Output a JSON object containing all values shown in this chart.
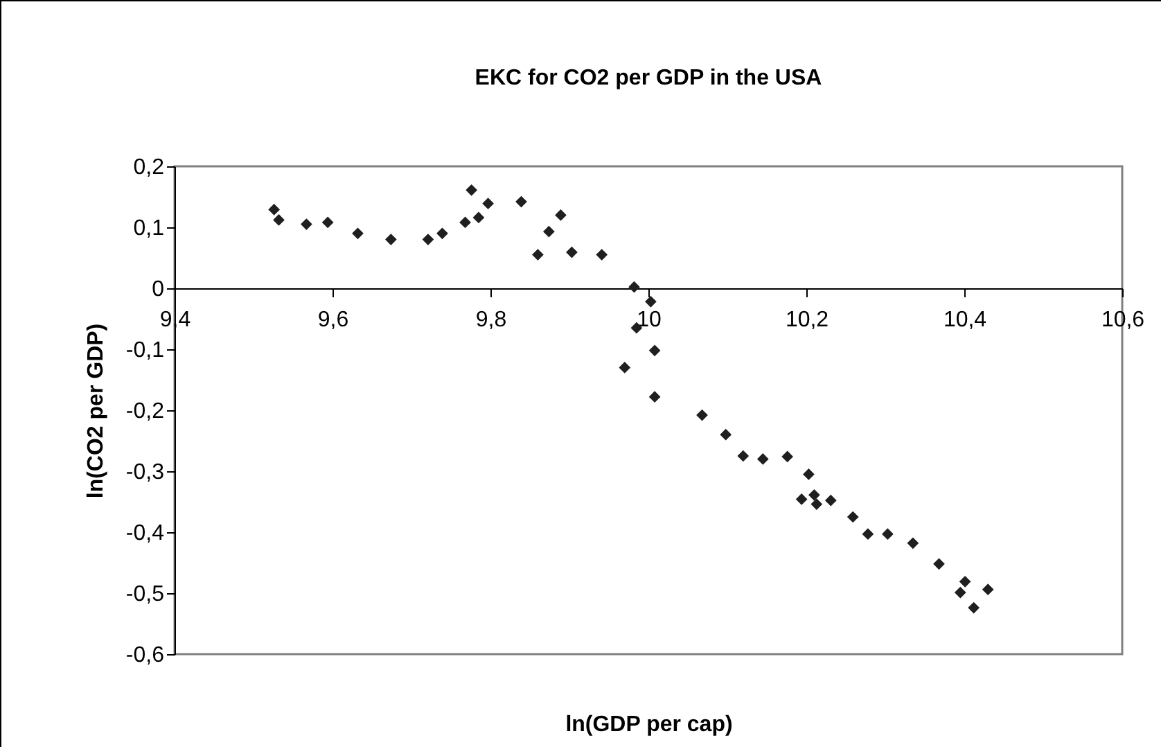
{
  "chart_data": {
    "type": "scatter",
    "title": "EKC for CO2 per GDP in the USA",
    "xlabel": "ln(GDP per cap)",
    "ylabel": "ln(CO2 per GDP)",
    "x": [
      9.526,
      9.532,
      9.567,
      9.594,
      9.632,
      9.674,
      9.721,
      9.739,
      9.768,
      9.776,
      9.785,
      9.797,
      9.839,
      9.86,
      9.874,
      9.889,
      9.903,
      9.941,
      9.982,
      10.003,
      9.985,
      9.97,
      10.008,
      10.008,
      10.068,
      10.098,
      10.12,
      10.145,
      10.176,
      10.203,
      10.194,
      10.21,
      10.213,
      10.231,
      10.259,
      10.278,
      10.303,
      10.335,
      10.368,
      10.401,
      10.395,
      10.43,
      10.412
    ],
    "series": [
      {
        "color": "#1f1f1f",
        "values": [
          0.129,
          0.112,
          0.105,
          0.108,
          0.09,
          0.08,
          0.08,
          0.09,
          0.108,
          0.161,
          0.116,
          0.139,
          0.142,
          0.055,
          0.093,
          0.12,
          0.059,
          0.055,
          0.002,
          -0.022,
          -0.065,
          -0.13,
          -0.102,
          -0.178,
          -0.208,
          -0.24,
          -0.275,
          -0.28,
          -0.276,
          -0.305,
          -0.346,
          -0.339,
          -0.354,
          -0.348,
          -0.375,
          -0.403,
          -0.403,
          -0.418,
          -0.452,
          -0.481,
          -0.499,
          -0.494,
          -0.524
        ]
      }
    ],
    "xlim": [
      9.4,
      10.6
    ],
    "xticks": [
      {
        "value": 9.4,
        "label": "9,4"
      },
      {
        "value": 9.6,
        "label": "9,6"
      },
      {
        "value": 9.8,
        "label": "9,8"
      },
      {
        "value": 10,
        "label": "10"
      },
      {
        "value": 10.2,
        "label": "10,2"
      },
      {
        "value": 10.4,
        "label": "10,4"
      },
      {
        "value": 10.6,
        "label": "10,6"
      }
    ],
    "ylim": [
      -0.6,
      0.2
    ],
    "yticks": [
      {
        "value": -0.6,
        "label": "-0,6"
      },
      {
        "value": -0.5,
        "label": "-0,5"
      },
      {
        "value": -0.4,
        "label": "-0,4"
      },
      {
        "value": -0.3,
        "label": "-0,3"
      },
      {
        "value": -0.2,
        "label": "-0,2"
      },
      {
        "value": -0.1,
        "label": "-0,1"
      },
      {
        "value": 0,
        "label": "0"
      },
      {
        "value": 0.1,
        "label": "0,1"
      },
      {
        "value": 0.2,
        "label": "0,2"
      }
    ],
    "marker": "diamond",
    "grid": false,
    "legend": false
  }
}
